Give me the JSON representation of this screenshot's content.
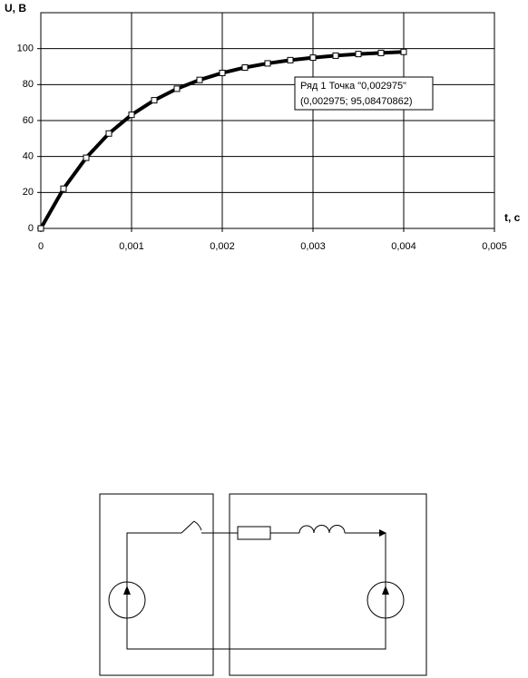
{
  "chart_data": {
    "type": "line",
    "y_label": "U, B",
    "x_label": "t, c",
    "annotations": [
      "Ряд 1 Точка \"0,002975\"",
      "(0,002975; 95,08470862)"
    ],
    "x": [
      0,
      0.00025,
      0.0005,
      0.00075,
      0.001,
      0.00125,
      0.0015,
      0.00175,
      0.002,
      0.00225,
      0.0025,
      0.00275,
      0.003,
      0.00325,
      0.0035,
      0.00375,
      0.004
    ],
    "values": [
      0,
      22.1,
      39.3,
      52.8,
      63.2,
      71.3,
      77.7,
      82.6,
      86.5,
      89.5,
      91.8,
      93.6,
      95.0,
      96.1,
      97.0,
      97.6,
      98.2
    ],
    "color": "#000000",
    "xlim": [
      0,
      0.005
    ],
    "ylim": [
      0,
      120
    ],
    "xticks": [
      0,
      {
        "value": 0.001,
        "label": "0,001"
      },
      {
        "value": 0.002,
        "label": "0,002"
      },
      {
        "value": 0.003,
        "label": "0,003"
      },
      {
        "value": 0.004,
        "label": "0,004"
      },
      {
        "value": 0.005,
        "label": "0,005"
      }
    ],
    "yticks": [
      0,
      20,
      40,
      60,
      80,
      100
    ],
    "grid": true
  }
}
